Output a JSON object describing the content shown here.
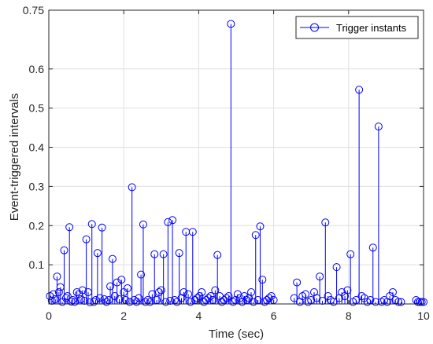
{
  "chart_data": {
    "type": "stem",
    "xlabel": "Time (sec)",
    "ylabel": "Event-triggered intervals",
    "xlim": [
      0,
      10
    ],
    "ylim": [
      0,
      0.75
    ],
    "xticks": [
      0,
      2,
      4,
      6,
      8,
      10
    ],
    "xtick_labels": [
      "0",
      "2",
      "4",
      "6",
      "8",
      "10"
    ],
    "yticks": [
      0.1,
      0.2,
      0.3,
      0.4,
      0.5,
      0.6,
      0.75
    ],
    "ytick_labels": [
      "0.1",
      "0.2",
      "0.3",
      "0.4",
      "0.5",
      "0.6",
      "0.75"
    ],
    "grid": true,
    "legend_position": "top-right",
    "color": "#0000ff",
    "series": [
      {
        "name": "Trigger instants",
        "x": [
          0.03,
          0.08,
          0.12,
          0.17,
          0.22,
          0.27,
          0.31,
          0.36,
          0.41,
          0.46,
          0.5,
          0.55,
          0.6,
          0.64,
          0.69,
          0.75,
          0.8,
          0.86,
          0.9,
          0.95,
          1.0,
          1.05,
          1.1,
          1.15,
          1.2,
          1.25,
          1.3,
          1.36,
          1.42,
          1.48,
          1.54,
          1.6,
          1.64,
          1.7,
          1.76,
          1.82,
          1.88,
          1.94,
          2.0,
          2.05,
          2.1,
          2.16,
          2.22,
          2.28,
          2.34,
          2.4,
          2.46,
          2.52,
          2.58,
          2.64,
          2.7,
          2.76,
          2.82,
          2.88,
          2.94,
          3.0,
          3.06,
          3.12,
          3.18,
          3.24,
          3.3,
          3.36,
          3.42,
          3.48,
          3.54,
          3.6,
          3.66,
          3.72,
          3.78,
          3.84,
          3.9,
          3.96,
          4.02,
          4.08,
          4.14,
          4.2,
          4.26,
          4.32,
          4.38,
          4.44,
          4.5,
          4.56,
          4.62,
          4.68,
          4.74,
          4.8,
          4.86,
          4.92,
          4.98,
          5.04,
          5.1,
          5.16,
          5.22,
          5.28,
          5.34,
          5.4,
          5.46,
          5.52,
          5.58,
          5.64,
          5.7,
          5.76,
          5.82,
          5.88,
          5.94,
          6.0,
          6.55,
          6.62,
          6.7,
          6.77,
          6.85,
          6.92,
          7.0,
          7.08,
          7.15,
          7.23,
          7.3,
          7.38,
          7.45,
          7.52,
          7.6,
          7.68,
          7.75,
          7.82,
          7.9,
          7.97,
          8.05,
          8.12,
          8.2,
          8.28,
          8.35,
          8.42,
          8.5,
          8.58,
          8.65,
          8.72,
          8.8,
          8.88,
          8.95,
          9.03,
          9.1,
          9.18,
          9.25,
          9.33,
          9.4,
          9.8,
          9.85,
          9.9,
          9.95,
          10.0
        ],
        "y": [
          0.02,
          0.008,
          0.025,
          0.012,
          0.07,
          0.03,
          0.043,
          0.005,
          0.137,
          0.015,
          0.02,
          0.196,
          0.006,
          0.01,
          0.005,
          0.03,
          0.025,
          0.012,
          0.035,
          0.008,
          0.165,
          0.03,
          0.004,
          0.204,
          0.005,
          0.01,
          0.13,
          0.015,
          0.195,
          0.012,
          0.005,
          0.01,
          0.045,
          0.115,
          0.02,
          0.055,
          0.012,
          0.062,
          0.03,
          0.01,
          0.04,
          0.005,
          0.298,
          0.01,
          0.005,
          0.015,
          0.075,
          0.203,
          0.005,
          0.01,
          0.005,
          0.025,
          0.127,
          0.01,
          0.03,
          0.035,
          0.127,
          0.005,
          0.209,
          0.008,
          0.214,
          0.01,
          0.005,
          0.13,
          0.015,
          0.03,
          0.184,
          0.025,
          0.005,
          0.184,
          0.01,
          0.015,
          0.02,
          0.03,
          0.005,
          0.01,
          0.015,
          0.02,
          0.01,
          0.035,
          0.125,
          0.02,
          0.005,
          0.01,
          0.015,
          0.02,
          0.715,
          0.005,
          0.01,
          0.025,
          0.015,
          0.005,
          0.02,
          0.01,
          0.015,
          0.03,
          0.005,
          0.176,
          0.01,
          0.198,
          0.062,
          0.005,
          0.01,
          0.015,
          0.02,
          0.01,
          0.015,
          0.055,
          0.005,
          0.02,
          0.025,
          0.005,
          0.01,
          0.03,
          0.015,
          0.07,
          0.008,
          0.208,
          0.02,
          0.01,
          0.005,
          0.094,
          0.015,
          0.03,
          0.02,
          0.035,
          0.127,
          0.005,
          0.01,
          0.547,
          0.02,
          0.015,
          0.005,
          0.01,
          0.144,
          0.005,
          0.453,
          0.005,
          0.01,
          0.005,
          0.02,
          0.03,
          0.01,
          0.005,
          0.005,
          0.01,
          0.005,
          0.005,
          0.005,
          0.005
        ]
      }
    ]
  }
}
